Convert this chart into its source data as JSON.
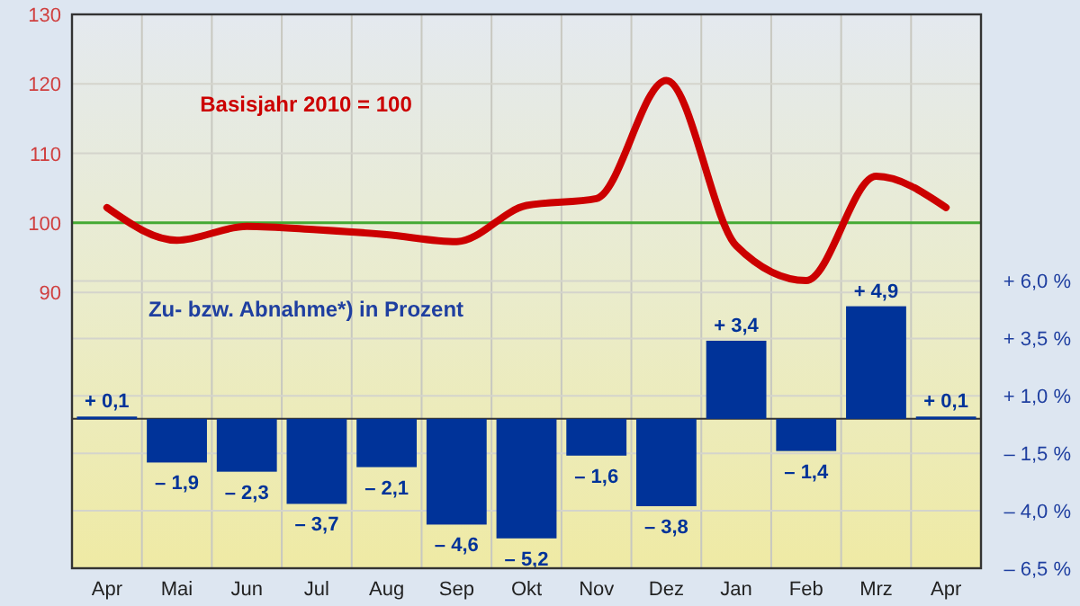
{
  "chart_data": {
    "type": "bar",
    "categories": [
      "Apr",
      "Mai",
      "Jun",
      "Jul",
      "Aug",
      "Sep",
      "Okt",
      "Nov",
      "Dez",
      "Jan",
      "Feb",
      "Mrz",
      "Apr"
    ],
    "series": [
      {
        "type": "line",
        "axis": "y",
        "color": "#cc0000",
        "values": [
          102.2,
          97.5,
          99.5,
          99,
          98.3,
          97.3,
          102.5,
          103.5,
          120.5,
          96.7,
          91.7,
          106.7,
          102.2
        ]
      },
      {
        "axis": "y2",
        "color": "#003399",
        "values": [
          0.1,
          -1.9,
          -2.3,
          -3.7,
          -2.1,
          -4.6,
          -5.2,
          -1.6,
          -3.8,
          3.4,
          -1.4,
          4.9,
          0.1
        ],
        "value_labels": [
          "+ 0,1",
          "– 1,9",
          "– 2,3",
          "– 3,7",
          "– 2,1",
          "– 4,6",
          "– 5,2",
          "– 1,6",
          "– 3,8",
          "+ 3,4",
          "– 1,4",
          "+ 4,9",
          "+ 0,1"
        ]
      }
    ],
    "ylim": [
      50.3,
      130
    ],
    "yticks": [
      90,
      100,
      110,
      120,
      130
    ],
    "y2lim": [
      -6.5,
      17.6
    ],
    "y2ticks": [
      {
        "value": 6,
        "label": "+ 6,0 %"
      },
      {
        "value": 3.5,
        "label": "+ 3,5 %"
      },
      {
        "value": 1,
        "label": "+ 1,0 %"
      },
      {
        "value": -1.5,
        "label": "– 1,5 %"
      },
      {
        "value": -4,
        "label": "– 4,0 %"
      },
      {
        "value": -6.5,
        "label": "– 6,5 %"
      }
    ],
    "ref_lines": [
      {
        "axis": "y",
        "value": 100,
        "color": "#44aa33"
      }
    ],
    "annotations": [
      "Basisjahr 2010 = 100",
      "Zu- bzw. Abnahme*) in Prozent"
    ],
    "grid": true
  }
}
